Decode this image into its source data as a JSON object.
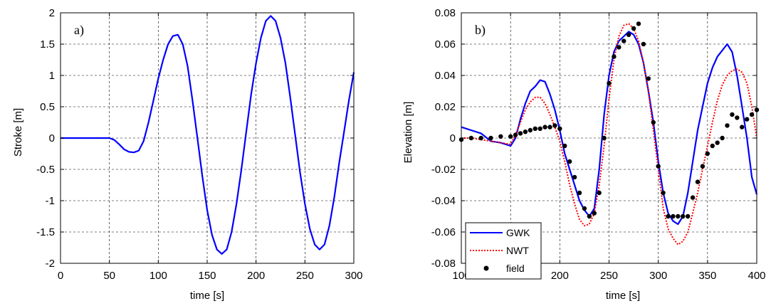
{
  "chart_data": [
    {
      "type": "line",
      "panel_label": "a)",
      "xlabel": "time [s]",
      "ylabel": "Stroke [m]",
      "xlim": [
        0,
        300
      ],
      "ylim": [
        -2,
        2
      ],
      "xticks": [
        0,
        50,
        100,
        150,
        200,
        250,
        300
      ],
      "yticks": [
        -2,
        -1.5,
        -1,
        -0.5,
        0,
        0.5,
        1,
        1.5,
        2
      ],
      "grid": true,
      "series": [
        {
          "color": "#0000ff",
          "style": "solid",
          "x": [
            0,
            50,
            55,
            60,
            65,
            70,
            75,
            80,
            85,
            90,
            95,
            100,
            105,
            110,
            115,
            120,
            125,
            130,
            135,
            140,
            145,
            150,
            155,
            160,
            165,
            170,
            175,
            180,
            185,
            190,
            195,
            200,
            205,
            210,
            215,
            220,
            225,
            230,
            235,
            240,
            245,
            250,
            255,
            260,
            265,
            270,
            275,
            280,
            285,
            290,
            295,
            300
          ],
          "y": [
            0,
            0,
            -0.03,
            -0.1,
            -0.18,
            -0.22,
            -0.23,
            -0.2,
            -0.05,
            0.25,
            0.6,
            0.95,
            1.25,
            1.5,
            1.63,
            1.65,
            1.5,
            1.15,
            0.6,
            0,
            -0.6,
            -1.15,
            -1.55,
            -1.78,
            -1.85,
            -1.78,
            -1.5,
            -1.05,
            -0.5,
            0.1,
            0.7,
            1.2,
            1.6,
            1.87,
            1.95,
            1.87,
            1.6,
            1.2,
            0.65,
            0.05,
            -0.55,
            -1.05,
            -1.45,
            -1.7,
            -1.78,
            -1.7,
            -1.4,
            -0.95,
            -0.4,
            0.1,
            0.6,
            1.05
          ]
        }
      ]
    },
    {
      "type": "line",
      "panel_label": "b)",
      "xlabel": "time [s]",
      "ylabel": "Elevation [m]",
      "xlim": [
        100,
        400
      ],
      "ylim": [
        -0.08,
        0.08
      ],
      "xticks": [
        100,
        150,
        200,
        250,
        300,
        350,
        400
      ],
      "yticks": [
        -0.08,
        -0.06,
        -0.04,
        -0.02,
        0,
        0.02,
        0.04,
        0.06,
        0.08
      ],
      "ytick_labels": [
        "-0.08",
        "-0.06",
        "-0.04",
        "-0.02",
        "0",
        "0.02",
        "0.04",
        "0.06",
        "0.08"
      ],
      "grid": true,
      "legend_position": "bottom-left",
      "series": [
        {
          "name": "GWK",
          "color": "#0000ff",
          "style": "solid",
          "x": [
            100,
            110,
            120,
            130,
            140,
            150,
            155,
            160,
            165,
            170,
            175,
            180,
            185,
            190,
            195,
            200,
            205,
            210,
            215,
            220,
            225,
            230,
            235,
            240,
            245,
            250,
            255,
            260,
            265,
            270,
            275,
            280,
            285,
            290,
            295,
            300,
            305,
            310,
            315,
            320,
            325,
            330,
            335,
            340,
            345,
            350,
            355,
            360,
            365,
            370,
            375,
            380,
            385,
            390,
            395,
            400
          ],
          "y": [
            0.007,
            0.005,
            0.003,
            -0.002,
            -0.003,
            -0.005,
            0.0,
            0.012,
            0.022,
            0.03,
            0.033,
            0.037,
            0.036,
            0.028,
            0.018,
            0.005,
            -0.01,
            -0.02,
            -0.03,
            -0.04,
            -0.046,
            -0.05,
            -0.045,
            -0.02,
            0.015,
            0.04,
            0.055,
            0.062,
            0.065,
            0.068,
            0.066,
            0.06,
            0.048,
            0.03,
            0.01,
            -0.015,
            -0.035,
            -0.048,
            -0.053,
            -0.055,
            -0.05,
            -0.035,
            -0.015,
            0.005,
            0.02,
            0.035,
            0.045,
            0.052,
            0.056,
            0.06,
            0.055,
            0.04,
            0.02,
            0.0,
            -0.025,
            -0.036
          ]
        },
        {
          "name": "NWT",
          "color": "#ff0000",
          "style": "dotted",
          "x": [
            100,
            110,
            120,
            130,
            140,
            150,
            155,
            160,
            165,
            170,
            175,
            180,
            185,
            190,
            195,
            200,
            205,
            210,
            215,
            220,
            225,
            230,
            235,
            240,
            245,
            250,
            255,
            260,
            265,
            270,
            275,
            280,
            285,
            290,
            295,
            300,
            305,
            310,
            315,
            320,
            325,
            330,
            335,
            340,
            345,
            350,
            355,
            360,
            365,
            370,
            375,
            380,
            385,
            390,
            395,
            400
          ],
          "y": [
            0.0,
            0.0,
            -0.001,
            -0.002,
            -0.003,
            -0.004,
            0.002,
            0.01,
            0.018,
            0.023,
            0.026,
            0.026,
            0.022,
            0.015,
            0.007,
            -0.002,
            -0.015,
            -0.03,
            -0.042,
            -0.052,
            -0.056,
            -0.055,
            -0.048,
            -0.03,
            -0.005,
            0.025,
            0.05,
            0.065,
            0.072,
            0.073,
            0.07,
            0.062,
            0.048,
            0.03,
            0.005,
            -0.02,
            -0.045,
            -0.058,
            -0.064,
            -0.068,
            -0.066,
            -0.06,
            -0.048,
            -0.035,
            -0.02,
            -0.005,
            0.01,
            0.024,
            0.034,
            0.04,
            0.043,
            0.044,
            0.042,
            0.035,
            0.02,
            0.0
          ]
        },
        {
          "name": "field",
          "color": "#000000",
          "style": "dots",
          "x": [
            100,
            110,
            120,
            130,
            140,
            150,
            155,
            160,
            165,
            170,
            175,
            180,
            185,
            190,
            195,
            200,
            205,
            210,
            215,
            220,
            225,
            230,
            235,
            240,
            245,
            250,
            255,
            260,
            265,
            270,
            275,
            280,
            285,
            290,
            295,
            300,
            305,
            310,
            315,
            320,
            325,
            330,
            335,
            340,
            345,
            350,
            355,
            360,
            365,
            370,
            375,
            380,
            385,
            390,
            395,
            400
          ],
          "y": [
            -0.001,
            0.0,
            0.0,
            0.0,
            0.001,
            0.001,
            0.002,
            0.003,
            0.004,
            0.005,
            0.006,
            0.006,
            0.007,
            0.007,
            0.008,
            0.006,
            -0.005,
            -0.015,
            -0.025,
            -0.035,
            -0.045,
            -0.05,
            -0.048,
            -0.035,
            0.0,
            0.035,
            0.052,
            0.058,
            0.062,
            0.066,
            0.07,
            0.073,
            0.06,
            0.038,
            0.01,
            -0.018,
            -0.035,
            -0.05,
            -0.05,
            -0.05,
            -0.05,
            -0.05,
            -0.038,
            -0.028,
            -0.018,
            -0.01,
            -0.005,
            -0.003,
            0.0,
            0.008,
            0.015,
            0.013,
            0.007,
            0.012,
            0.015,
            0.018
          ]
        }
      ]
    }
  ]
}
